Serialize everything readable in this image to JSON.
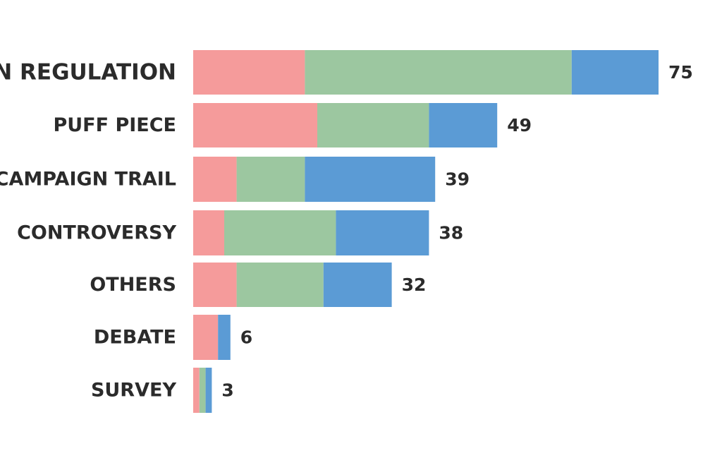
{
  "chart_data": {
    "type": "bar",
    "orientation": "horizontal",
    "stacked": true,
    "categories": [
      "ELECTION REGULATION",
      "PUFF PIECE",
      "CAMPAIGN TRAIL",
      "CONTROVERSY",
      "OTHERS",
      "DEBATE",
      "SURVEY"
    ],
    "totals": [
      75,
      49,
      39,
      38,
      32,
      6,
      3
    ],
    "series": [
      {
        "color": "#f59b9b",
        "values": [
          18,
          20,
          7,
          5,
          7,
          4,
          1
        ]
      },
      {
        "color": "#9cc7a0",
        "values": [
          43,
          18,
          11,
          18,
          14,
          0,
          1
        ]
      },
      {
        "color": "#5b9bd5",
        "values": [
          14,
          11,
          21,
          15,
          11,
          2,
          1
        ]
      }
    ],
    "title": "",
    "xlabel": "",
    "ylabel": "",
    "xlim": [
      0,
      75
    ],
    "grid": false,
    "legend": "none"
  }
}
